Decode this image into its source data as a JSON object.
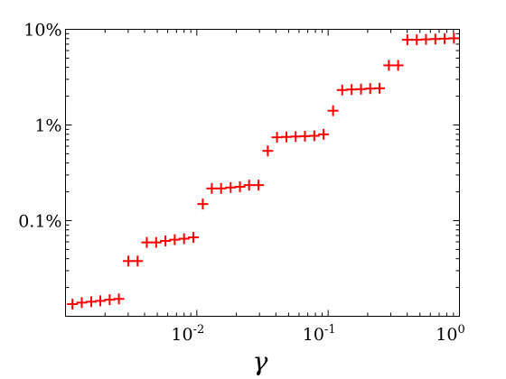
{
  "chart_data": {
    "type": "scatter",
    "title": "",
    "xlabel": "γ",
    "ylabel": "",
    "x_scale": "log",
    "y_scale": "log",
    "xlim": [
      0.001,
      1
    ],
    "ylim": [
      0.0001,
      0.1
    ],
    "grid": false,
    "marker": "plus",
    "marker_color": "#ff0000",
    "x_ticks": [
      {
        "value": 0.01,
        "base": "10",
        "exp": "-2"
      },
      {
        "value": 0.1,
        "base": "10",
        "exp": "-1"
      },
      {
        "value": 1,
        "base": "10",
        "exp": "0"
      }
    ],
    "y_ticks": [
      {
        "value": 0.001,
        "label": "0.1%"
      },
      {
        "value": 0.01,
        "label": "1%"
      },
      {
        "value": 0.1,
        "label": "10%"
      }
    ],
    "series": [
      {
        "points": [
          [
            0.00113,
            0.000134
          ],
          [
            0.00133,
            0.000139
          ],
          [
            0.00157,
            0.000142
          ],
          [
            0.00184,
            0.000145
          ],
          [
            0.00217,
            0.000149
          ],
          [
            0.00255,
            0.000152
          ],
          [
            0.00301,
            0.000378
          ],
          [
            0.00354,
            0.000378
          ],
          [
            0.00416,
            0.000592
          ],
          [
            0.0049,
            0.000592
          ],
          [
            0.00577,
            0.000614
          ],
          [
            0.00679,
            0.000632
          ],
          [
            0.00799,
            0.000647
          ],
          [
            0.00941,
            0.000668
          ],
          [
            0.0111,
            0.00149
          ],
          [
            0.013,
            0.00217
          ],
          [
            0.0153,
            0.00217
          ],
          [
            0.0181,
            0.00222
          ],
          [
            0.0213,
            0.00226
          ],
          [
            0.025,
            0.00235
          ],
          [
            0.0295,
            0.00235
          ],
          [
            0.0347,
            0.00536
          ],
          [
            0.0408,
            0.00743
          ],
          [
            0.0481,
            0.0075
          ],
          [
            0.0566,
            0.00757
          ],
          [
            0.0666,
            0.00764
          ],
          [
            0.0784,
            0.00771
          ],
          [
            0.0923,
            0.00799
          ],
          [
            0.109,
            0.0141
          ],
          [
            0.128,
            0.0232
          ],
          [
            0.151,
            0.0235
          ],
          [
            0.178,
            0.0237
          ],
          [
            0.209,
            0.024
          ],
          [
            0.246,
            0.0242
          ],
          [
            0.29,
            0.042
          ],
          [
            0.341,
            0.042
          ],
          [
            0.401,
            0.0777
          ],
          [
            0.473,
            0.0777
          ],
          [
            0.556,
            0.0785
          ],
          [
            0.655,
            0.0792
          ],
          [
            0.771,
            0.0799
          ],
          [
            0.907,
            0.0806
          ]
        ]
      }
    ]
  }
}
